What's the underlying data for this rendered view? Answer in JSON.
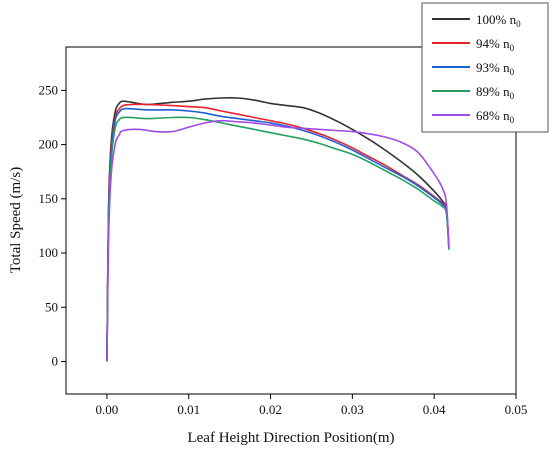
{
  "chart_data": {
    "type": "line",
    "title": "",
    "xlabel": "Leaf Height Direction Position(m)",
    "ylabel": "Total Speed (m/s)",
    "xlim": [
      -0.005,
      0.05
    ],
    "ylim": [
      -30,
      290
    ],
    "xticks": [
      "0.00",
      "0.01",
      "0.02",
      "0.03",
      "0.04",
      "0.05"
    ],
    "yticks": [
      "0",
      "50",
      "100",
      "150",
      "200",
      "250"
    ],
    "xtick_values": [
      0,
      0.01,
      0.02,
      0.03,
      0.04,
      0.05
    ],
    "ytick_values": [
      0,
      50,
      100,
      150,
      200,
      250
    ],
    "legend_position": "top-right",
    "legend_unit": "n",
    "legend_unit_sub": "0",
    "series": [
      {
        "name": "100%",
        "color": "#333333",
        "x": [
          0,
          0.0002,
          0.0005,
          0.001,
          0.0015,
          0.002,
          0.003,
          0.005,
          0.008,
          0.01,
          0.012,
          0.014,
          0.016,
          0.018,
          0.02,
          0.022,
          0.024,
          0.026,
          0.028,
          0.03,
          0.032,
          0.034,
          0.036,
          0.038,
          0.04,
          0.041,
          0.0415,
          0.0418
        ],
        "y": [
          0,
          140,
          200,
          230,
          238,
          240,
          239,
          237,
          239,
          240,
          242,
          243,
          243,
          241,
          238,
          236,
          234,
          229,
          222,
          214,
          205,
          195,
          184,
          172,
          157,
          148,
          140,
          105
        ]
      },
      {
        "name": "94%",
        "color": "#e8222a",
        "x": [
          0,
          0.0002,
          0.0005,
          0.001,
          0.0015,
          0.002,
          0.003,
          0.005,
          0.008,
          0.01,
          0.012,
          0.014,
          0.016,
          0.018,
          0.02,
          0.022,
          0.024,
          0.026,
          0.028,
          0.03,
          0.032,
          0.034,
          0.036,
          0.038,
          0.04,
          0.041,
          0.0415,
          0.0418
        ],
        "y": [
          0,
          135,
          195,
          225,
          233,
          236,
          237,
          237,
          236,
          235,
          234,
          231,
          228,
          225,
          222,
          219,
          215,
          210,
          204,
          197,
          189,
          181,
          172,
          163,
          152,
          146,
          140,
          105
        ]
      },
      {
        "name": "93%",
        "color": "#1f5fd6",
        "x": [
          0,
          0.0002,
          0.0005,
          0.001,
          0.0015,
          0.002,
          0.003,
          0.005,
          0.008,
          0.01,
          0.012,
          0.014,
          0.016,
          0.018,
          0.02,
          0.022,
          0.024,
          0.026,
          0.028,
          0.03,
          0.032,
          0.034,
          0.036,
          0.038,
          0.04,
          0.041,
          0.0415,
          0.0418
        ],
        "y": [
          0,
          130,
          190,
          222,
          230,
          233,
          233,
          232,
          232,
          231,
          229,
          226,
          224,
          222,
          220,
          217,
          213,
          208,
          202,
          195,
          187,
          179,
          171,
          162,
          151,
          145,
          138,
          105
        ]
      },
      {
        "name": "89%",
        "color": "#22a060",
        "x": [
          0,
          0.0002,
          0.0005,
          0.001,
          0.0015,
          0.002,
          0.003,
          0.005,
          0.008,
          0.01,
          0.012,
          0.014,
          0.016,
          0.018,
          0.02,
          0.022,
          0.024,
          0.026,
          0.028,
          0.03,
          0.032,
          0.034,
          0.036,
          0.038,
          0.04,
          0.041,
          0.0415,
          0.0418
        ],
        "y": [
          0,
          125,
          183,
          215,
          223,
          225,
          225,
          224,
          225,
          225,
          223,
          220,
          217,
          214,
          211,
          208,
          205,
          201,
          196,
          191,
          184,
          176,
          168,
          159,
          148,
          143,
          136,
          103
        ]
      },
      {
        "name": "68%",
        "color": "#a14be8",
        "x": [
          0,
          0.0002,
          0.0005,
          0.001,
          0.0015,
          0.002,
          0.004,
          0.006,
          0.008,
          0.01,
          0.012,
          0.014,
          0.016,
          0.018,
          0.02,
          0.022,
          0.024,
          0.026,
          0.028,
          0.03,
          0.032,
          0.034,
          0.036,
          0.038,
          0.04,
          0.041,
          0.0415,
          0.0418
        ],
        "y": [
          0,
          110,
          170,
          200,
          209,
          213,
          214,
          212,
          212,
          216,
          220,
          222,
          221,
          220,
          218,
          216,
          215,
          214,
          213,
          212,
          210,
          207,
          202,
          193,
          173,
          160,
          145,
          105
        ]
      }
    ]
  }
}
